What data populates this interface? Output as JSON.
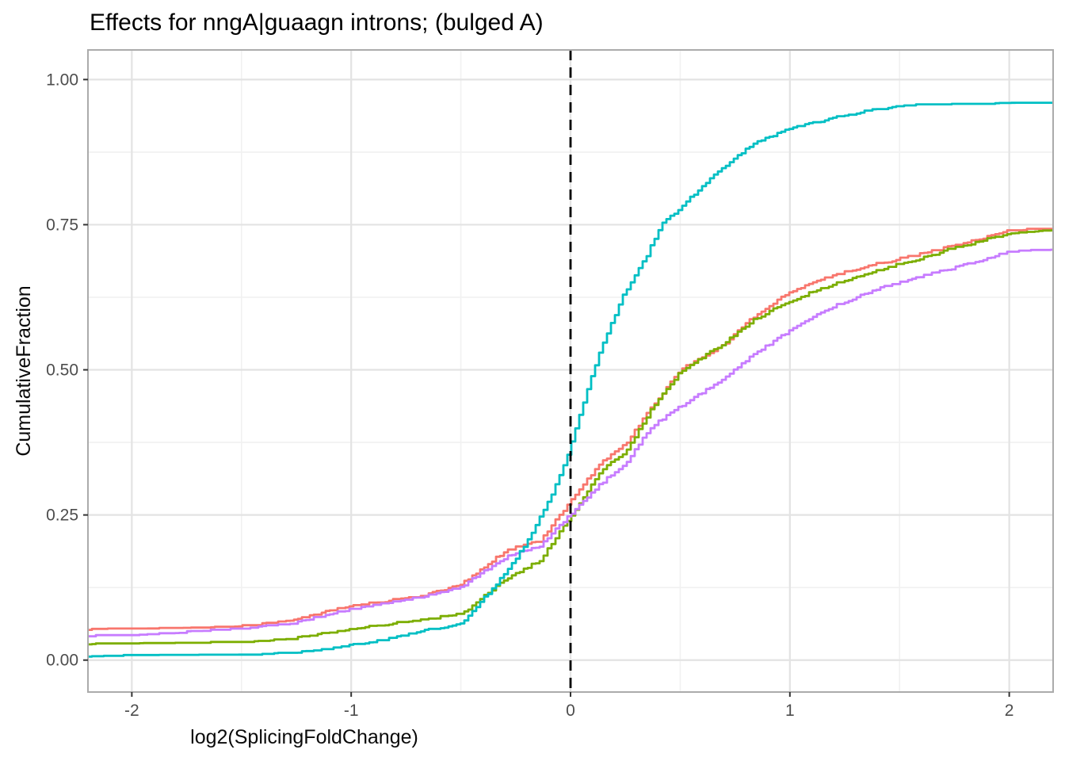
{
  "chart_data": {
    "type": "line",
    "subtype": "ecdf",
    "title": "Effects for nngA|guaagn introns; (bulged A)",
    "xlabel": "log2(SplicingFoldChange)",
    "ylabel": "CumulativeFraction",
    "xlim": [
      -2.2,
      2.2
    ],
    "ylim": [
      -0.055,
      1.051
    ],
    "grid": "on",
    "legend_position": "none",
    "x_ticks": {
      "values": [
        -2,
        -1,
        0,
        1,
        2
      ],
      "labels": [
        "-2",
        "-1",
        "0",
        "1",
        "2"
      ]
    },
    "y_ticks": {
      "values": [
        0,
        0.25,
        0.5,
        0.75,
        1.0
      ],
      "labels": [
        "0.00",
        "0.25",
        "0.50",
        "0.75",
        "1.00"
      ]
    },
    "x_minor_ticks": [
      -1.5,
      -0.5,
      0.5,
      1.5
    ],
    "y_minor_ticks": [
      0.125,
      0.375,
      0.625,
      0.875
    ],
    "vline": {
      "x": 0,
      "style": "dashed",
      "color": "#000000"
    },
    "colors": {
      "major_grid": "#e3e3e3",
      "minor_grid": "#f1f1f1",
      "panel_border": "#ababab",
      "tick_mark": "#333333",
      "tick_label": "#4d4d4d",
      "axis_title": "#0a0a0a",
      "title": "#000000",
      "background": "#ffffff"
    },
    "series": [
      {
        "name": "salmon",
        "color": "#F8766D",
        "points": [
          [
            -2.2,
            0.052
          ],
          [
            -2.0,
            0.053
          ],
          [
            -1.7,
            0.055
          ],
          [
            -1.5,
            0.058
          ],
          [
            -1.3,
            0.066
          ],
          [
            -1.0,
            0.094
          ],
          [
            -0.69,
            0.109
          ],
          [
            -0.5,
            0.131
          ],
          [
            -0.29,
            0.19
          ],
          [
            -0.14,
            0.205
          ],
          [
            0,
            0.275
          ],
          [
            0.14,
            0.342
          ],
          [
            0.25,
            0.372
          ],
          [
            0.36,
            0.432
          ],
          [
            0.5,
            0.5
          ],
          [
            0.69,
            0.541
          ],
          [
            0.83,
            0.59
          ],
          [
            1.0,
            0.635
          ],
          [
            1.2,
            0.663
          ],
          [
            1.4,
            0.683
          ],
          [
            1.55,
            0.695
          ],
          [
            1.75,
            0.714
          ],
          [
            2.0,
            0.74
          ],
          [
            2.2,
            0.743
          ]
        ]
      },
      {
        "name": "olive-green",
        "color": "#7CAE00",
        "points": [
          [
            -2.2,
            0.027
          ],
          [
            -2.0,
            0.027
          ],
          [
            -1.7,
            0.029
          ],
          [
            -1.5,
            0.03
          ],
          [
            -1.3,
            0.036
          ],
          [
            -1.0,
            0.053
          ],
          [
            -0.69,
            0.069
          ],
          [
            -0.5,
            0.079
          ],
          [
            -0.29,
            0.141
          ],
          [
            -0.14,
            0.172
          ],
          [
            0,
            0.248
          ],
          [
            0.14,
            0.328
          ],
          [
            0.25,
            0.359
          ],
          [
            0.36,
            0.428
          ],
          [
            0.5,
            0.498
          ],
          [
            0.68,
            0.541
          ],
          [
            0.83,
            0.585
          ],
          [
            1.0,
            0.619
          ],
          [
            1.2,
            0.648
          ],
          [
            1.4,
            0.672
          ],
          [
            1.55,
            0.687
          ],
          [
            1.75,
            0.71
          ],
          [
            2.0,
            0.735
          ],
          [
            2.2,
            0.74
          ]
        ]
      },
      {
        "name": "purple",
        "color": "#C77CFF",
        "points": [
          [
            -2.2,
            0.041
          ],
          [
            -2.0,
            0.043
          ],
          [
            -1.7,
            0.049
          ],
          [
            -1.5,
            0.054
          ],
          [
            -1.3,
            0.061
          ],
          [
            -1.0,
            0.088
          ],
          [
            -0.69,
            0.108
          ],
          [
            -0.5,
            0.126
          ],
          [
            -0.29,
            0.179
          ],
          [
            -0.14,
            0.197
          ],
          [
            0,
            0.252
          ],
          [
            0.14,
            0.305
          ],
          [
            0.25,
            0.339
          ],
          [
            0.36,
            0.4
          ],
          [
            0.5,
            0.437
          ],
          [
            0.675,
            0.48
          ],
          [
            0.83,
            0.525
          ],
          [
            1.0,
            0.568
          ],
          [
            1.2,
            0.61
          ],
          [
            1.4,
            0.64
          ],
          [
            1.55,
            0.656
          ],
          [
            1.75,
            0.676
          ],
          [
            2.0,
            0.703
          ],
          [
            2.2,
            0.707
          ]
        ]
      },
      {
        "name": "teal",
        "color": "#00BFC4",
        "points": [
          [
            -2.2,
            0.006
          ],
          [
            -2.0,
            0.007
          ],
          [
            -1.7,
            0.0075
          ],
          [
            -1.5,
            0.008
          ],
          [
            -1.3,
            0.011
          ],
          [
            -1.15,
            0.016
          ],
          [
            -1.0,
            0.026
          ],
          [
            -0.83,
            0.036
          ],
          [
            -0.69,
            0.049
          ],
          [
            -0.5,
            0.063
          ],
          [
            -0.4,
            0.105
          ],
          [
            -0.29,
            0.154
          ],
          [
            -0.18,
            0.215
          ],
          [
            -0.07,
            0.3
          ],
          [
            0,
            0.37
          ],
          [
            0.07,
            0.46
          ],
          [
            0.14,
            0.54
          ],
          [
            0.24,
            0.63
          ],
          [
            0.34,
            0.692
          ],
          [
            0.41,
            0.75
          ],
          [
            0.5,
            0.779
          ],
          [
            0.58,
            0.81
          ],
          [
            0.675,
            0.842
          ],
          [
            0.83,
            0.889
          ],
          [
            1.0,
            0.915
          ],
          [
            1.17,
            0.931
          ],
          [
            1.32,
            0.944
          ],
          [
            1.48,
            0.953
          ],
          [
            1.6,
            0.956
          ],
          [
            1.88,
            0.957
          ],
          [
            1.92,
            0.959
          ],
          [
            2.2,
            0.959
          ]
        ]
      }
    ]
  }
}
